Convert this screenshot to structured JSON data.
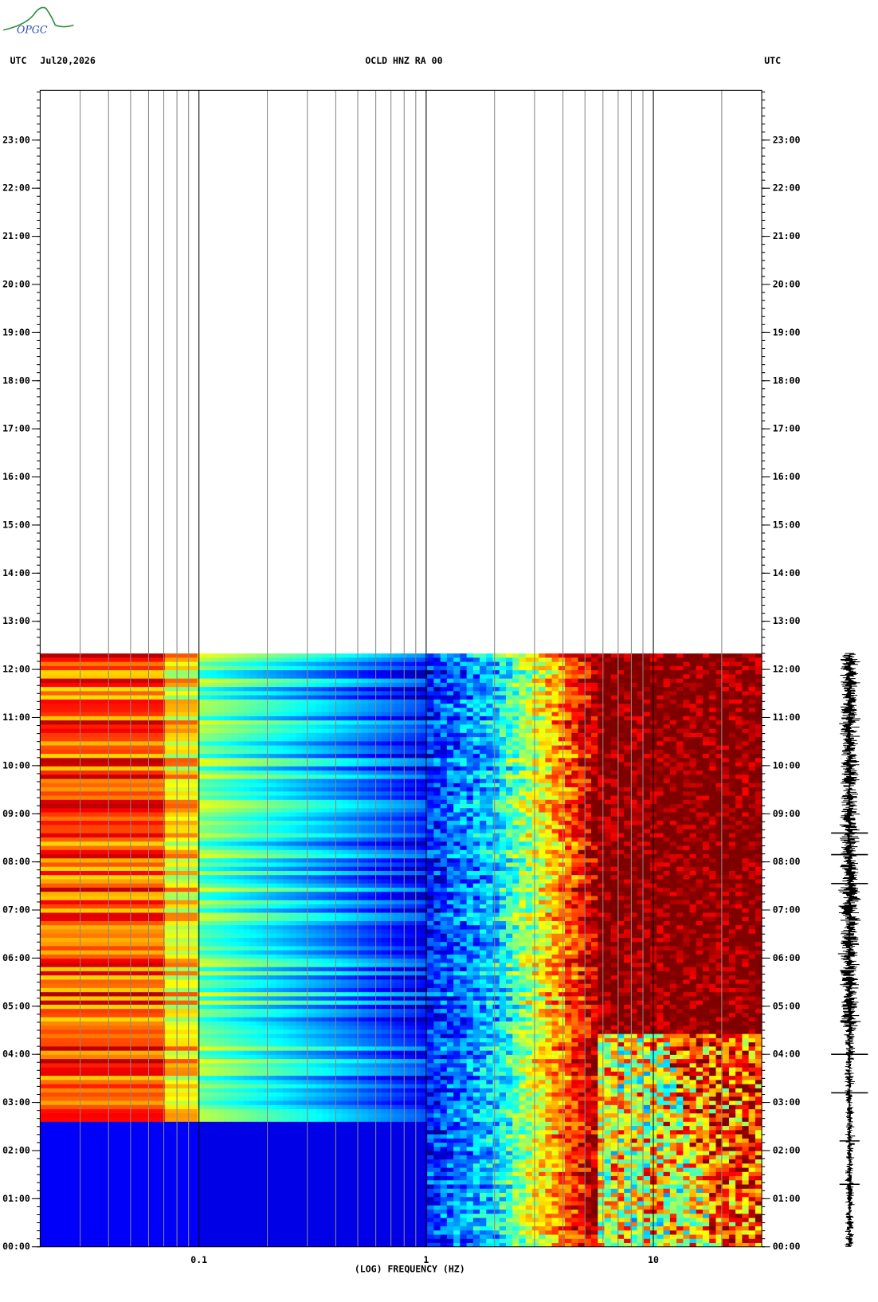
{
  "chart_data": {
    "type": "spectrogram",
    "logo": "OPGC",
    "left_label": "UTC",
    "date": "Jul20,2026",
    "title": "OCLD HNZ RA 00",
    "right_label": "UTC",
    "x_label": "(LOG) FREQUENCY (HZ)",
    "xlog": true,
    "xlim": [
      0.02,
      30
    ],
    "xticks": [
      0.1,
      1,
      10
    ],
    "x_minor_grid": [
      0.03,
      0.04,
      0.05,
      0.06,
      0.07,
      0.08,
      0.09,
      0.2,
      0.3,
      0.4,
      0.5,
      0.6,
      0.7,
      0.8,
      0.9,
      2,
      3,
      4,
      5,
      6,
      7,
      8,
      9,
      20
    ],
    "ylim": [
      0,
      24
    ],
    "yticks": [
      {
        "value": 0,
        "label": "00:00"
      },
      {
        "value": 1,
        "label": "01:00"
      },
      {
        "value": 2,
        "label": "02:00"
      },
      {
        "value": 3,
        "label": "03:00"
      },
      {
        "value": 4,
        "label": "04:00"
      },
      {
        "value": 5,
        "label": "05:00"
      },
      {
        "value": 6,
        "label": "06:00"
      },
      {
        "value": 7,
        "label": "07:00"
      },
      {
        "value": 8,
        "label": "08:00"
      },
      {
        "value": 9,
        "label": "09:00"
      },
      {
        "value": 10,
        "label": "10:00"
      },
      {
        "value": 11,
        "label": "11:00"
      },
      {
        "value": 12,
        "label": "12:00"
      },
      {
        "value": 13,
        "label": "13:00"
      },
      {
        "value": 14,
        "label": "14:00"
      },
      {
        "value": 15,
        "label": "15:00"
      },
      {
        "value": 16,
        "label": "16:00"
      },
      {
        "value": 17,
        "label": "17:00"
      },
      {
        "value": 18,
        "label": "18:00"
      },
      {
        "value": 19,
        "label": "19:00"
      },
      {
        "value": 20,
        "label": "20:00"
      },
      {
        "value": 21,
        "label": "21:00"
      },
      {
        "value": 22,
        "label": "22:00"
      },
      {
        "value": 23,
        "label": "23:00"
      }
    ]
  }
}
